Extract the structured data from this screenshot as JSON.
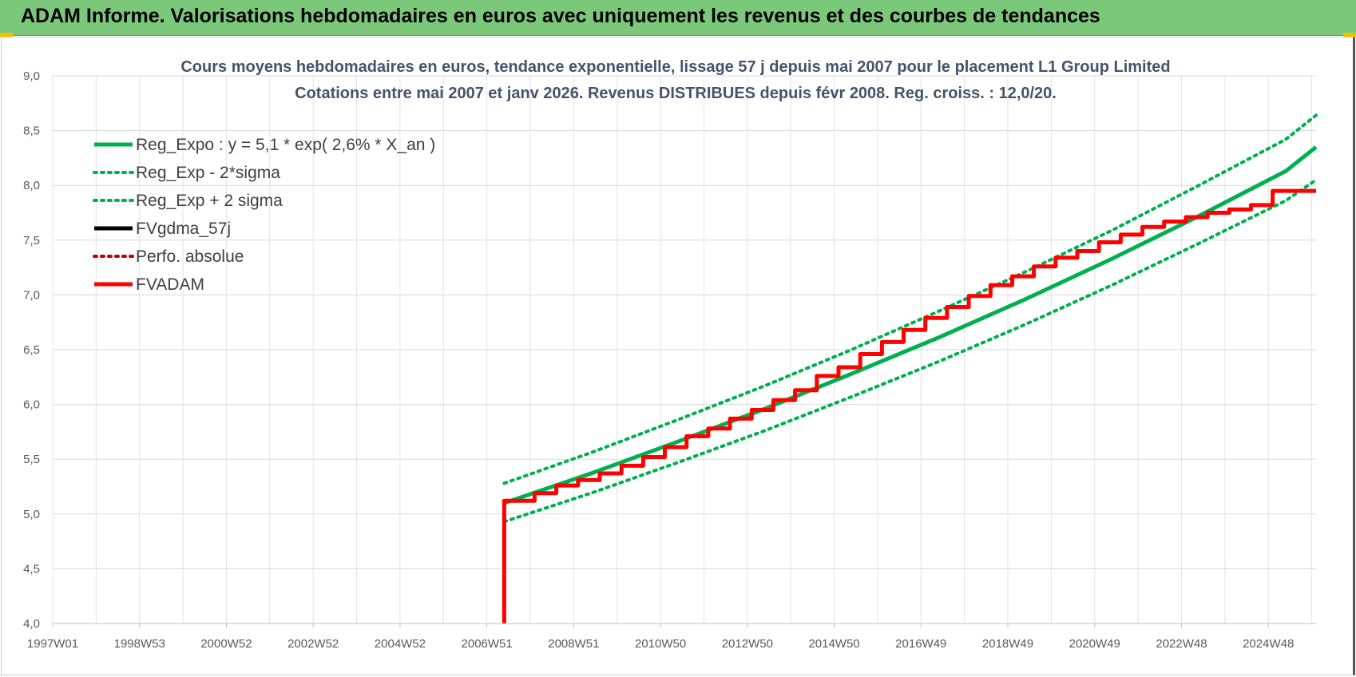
{
  "header": {
    "title": "ADAM Informe. Valorisations hebdomadaires en euros avec uniquement les revenus et des courbes de tendances"
  },
  "colors": {
    "banner": "#7cc87a",
    "trend_green": "#00b050",
    "price_black": "#000000",
    "adam_red": "#ff0000",
    "perfo_red": "#c00000"
  },
  "chart_data": {
    "type": "line",
    "title": [
      "Cours moyens hebdomadaires en euros, tendance exponentielle, lissage 57 j depuis mai 2007 pour le placement L1 Group Limited",
      "Cotations entre mai 2007 et janv 2026. Revenus DISTRIBUES depuis févr 2008. Reg. croiss. : 12,0/20."
    ],
    "xlabel": "",
    "ylabel": "",
    "x_tick_labels": [
      "1997W01",
      "1998W53",
      "2000W52",
      "2002W52",
      "2004W52",
      "2006W51",
      "2008W51",
      "2010W50",
      "2012W50",
      "2014W50",
      "2016W49",
      "2018W49",
      "2020W49",
      "2022W48",
      "2024W48"
    ],
    "x_tick_years": [
      1997.0,
      1999.0,
      2001.0,
      2003.0,
      2005.0,
      2007.0,
      2009.0,
      2011.0,
      2013.0,
      2015.0,
      2017.0,
      2019.0,
      2021.0,
      2023.0,
      2025.0
    ],
    "xlim": [
      1997.0,
      2026.1
    ],
    "ylim": [
      4.0,
      9.0
    ],
    "y_ticks": [
      "4,0",
      "4,5",
      "5,0",
      "5,5",
      "6,0",
      "6,5",
      "7,0",
      "7,5",
      "8,0",
      "8,5",
      "9,0"
    ],
    "y_tick_values": [
      4.0,
      4.5,
      5.0,
      5.5,
      6.0,
      6.5,
      7.0,
      7.5,
      8.0,
      8.5,
      9.0
    ],
    "grid": true,
    "legend_position": "top-left",
    "series": [
      {
        "name": "Reg_Expo : y = 5,1 * exp( 2,6% *  X_an )",
        "style": "solid",
        "color": "#00b050",
        "x": [
          2007.4,
          2009.4,
          2011.4,
          2013.4,
          2015.4,
          2017.4,
          2019.4,
          2021.4,
          2023.4,
          2025.4,
          2026.1
        ],
        "y": [
          5.1,
          5.37,
          5.66,
          5.96,
          6.28,
          6.61,
          6.96,
          7.33,
          7.72,
          8.13,
          8.35
        ]
      },
      {
        "name": "Reg_Exp - 2*sigma",
        "style": "dotted",
        "color": "#00b050",
        "x": [
          2007.4,
          2009.4,
          2011.4,
          2013.4,
          2015.4,
          2017.4,
          2019.4,
          2021.4,
          2023.4,
          2025.4,
          2026.1
        ],
        "y": [
          4.93,
          5.19,
          5.47,
          5.76,
          6.07,
          6.39,
          6.73,
          7.09,
          7.47,
          7.86,
          8.05
        ]
      },
      {
        "name": "Reg_Exp + 2 sigma",
        "style": "dotted",
        "color": "#00b050",
        "x": [
          2007.4,
          2009.4,
          2011.4,
          2013.4,
          2015.4,
          2017.4,
          2019.4,
          2021.4,
          2023.4,
          2025.4,
          2026.1
        ],
        "y": [
          5.28,
          5.56,
          5.86,
          6.17,
          6.5,
          6.85,
          7.21,
          7.59,
          8.0,
          8.42,
          8.64
        ]
      },
      {
        "name": "FVgdma_57j",
        "style": "solid",
        "color": "#000000",
        "x": [
          2007.4,
          2007.4,
          2008.1,
          2008.6,
          2009.1,
          2009.6,
          2010.1,
          2010.6,
          2011.1,
          2011.6,
          2012.1,
          2012.6,
          2013.1,
          2013.6,
          2014.1,
          2014.6,
          2015.1,
          2015.6,
          2016.1,
          2016.6,
          2017.1,
          2017.6,
          2018.1,
          2018.6,
          2019.1,
          2019.6,
          2020.1,
          2020.6,
          2021.1,
          2021.6,
          2022.1,
          2022.6,
          2023.1,
          2023.6,
          2024.1,
          2024.6,
          2025.1,
          2026.1
        ],
        "y": [
          4.0,
          5.12,
          5.19,
          5.26,
          5.31,
          5.37,
          5.44,
          5.52,
          5.61,
          5.71,
          5.78,
          5.87,
          5.95,
          6.04,
          6.13,
          6.26,
          6.34,
          6.46,
          6.57,
          6.68,
          6.79,
          6.89,
          6.99,
          7.09,
          7.17,
          7.26,
          7.34,
          7.4,
          7.48,
          7.55,
          7.62,
          7.67,
          7.71,
          7.75,
          7.78,
          7.82,
          7.95,
          7.95
        ]
      },
      {
        "name": "Perfo. absolue",
        "style": "dotted",
        "color": "#c00000",
        "x": [],
        "y": []
      },
      {
        "name": "FVADAM",
        "style": "solid",
        "color": "#ff0000",
        "x": [
          2007.4,
          2007.4,
          2008.1,
          2008.6,
          2009.1,
          2009.6,
          2010.1,
          2010.6,
          2011.1,
          2011.6,
          2012.1,
          2012.6,
          2013.1,
          2013.6,
          2014.1,
          2014.6,
          2015.1,
          2015.6,
          2016.1,
          2016.6,
          2017.1,
          2017.6,
          2018.1,
          2018.6,
          2019.1,
          2019.6,
          2020.1,
          2020.6,
          2021.1,
          2021.6,
          2022.1,
          2022.6,
          2023.1,
          2023.6,
          2024.1,
          2024.6,
          2025.1,
          2026.1
        ],
        "y": [
          4.0,
          5.12,
          5.19,
          5.26,
          5.31,
          5.37,
          5.44,
          5.52,
          5.61,
          5.71,
          5.78,
          5.87,
          5.95,
          6.04,
          6.13,
          6.26,
          6.34,
          6.46,
          6.57,
          6.68,
          6.79,
          6.89,
          6.99,
          7.09,
          7.17,
          7.26,
          7.34,
          7.4,
          7.48,
          7.55,
          7.62,
          7.67,
          7.71,
          7.75,
          7.78,
          7.82,
          7.95,
          7.95
        ]
      }
    ]
  }
}
